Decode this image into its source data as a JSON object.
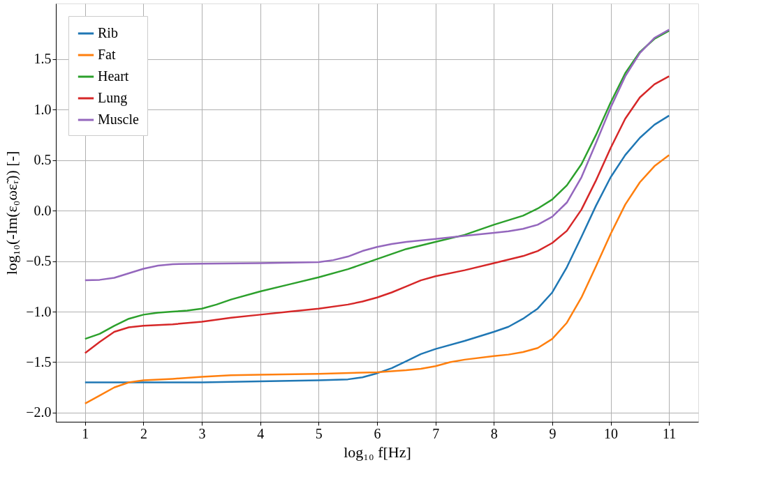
{
  "chart_data": {
    "type": "line",
    "xlabel": "log₁₀ f[Hz]",
    "ylabel": "log₁₀(-Im(ε₀ωε̃ᵣ)) [-]",
    "xlim": [
      0.5,
      11.5
    ],
    "xticks": [
      1,
      2,
      3,
      4,
      5,
      6,
      7,
      8,
      9,
      10,
      11
    ],
    "ylim": [
      -2.09,
      2.05
    ],
    "yticks": [
      {
        "value": -2,
        "label": "−2.0"
      },
      {
        "value": -1.5,
        "label": "−1.5"
      },
      {
        "value": -1,
        "label": "−1.0"
      },
      {
        "value": -0.5,
        "label": "−0.5"
      },
      {
        "value": 0,
        "label": "0.0"
      },
      {
        "value": 0.5,
        "label": "0.5"
      },
      {
        "value": 1,
        "label": "1.0"
      },
      {
        "value": 1.5,
        "label": "1.5"
      }
    ],
    "grid": true,
    "legend": "top left",
    "line_style": "solid",
    "marker": "none",
    "series": [
      {
        "name": "Rib",
        "color": "#1f77b4",
        "x": [
          1,
          2,
          3,
          4,
          5,
          5.5,
          5.75,
          6,
          6.25,
          6.5,
          6.75,
          7,
          7.5,
          8,
          8.25,
          8.5,
          8.75,
          9,
          9.25,
          9.5,
          9.75,
          10,
          10.25,
          10.5,
          10.75,
          11
        ],
        "values": [
          -1.7,
          -1.7,
          -1.7,
          -1.69,
          -1.68,
          -1.67,
          -1.65,
          -1.61,
          -1.56,
          -1.49,
          -1.42,
          -1.37,
          -1.29,
          -1.2,
          -1.15,
          -1.07,
          -0.97,
          -0.81,
          -0.56,
          -0.26,
          0.05,
          0.33,
          0.55,
          0.72,
          0.85,
          0.94
        ]
      },
      {
        "name": "Fat",
        "color": "#ff7f0e",
        "x": [
          1,
          1.25,
          1.5,
          1.75,
          2,
          2.5,
          3,
          3.5,
          4,
          5,
          6,
          6.5,
          6.75,
          7,
          7.25,
          7.5,
          8,
          8.25,
          8.5,
          8.75,
          9,
          9.25,
          9.5,
          9.75,
          10,
          10.25,
          10.5,
          10.75,
          11
        ],
        "values": [
          -1.91,
          -1.83,
          -1.75,
          -1.7,
          -1.68,
          -1.665,
          -1.645,
          -1.63,
          -1.625,
          -1.615,
          -1.6,
          -1.58,
          -1.565,
          -1.54,
          -1.5,
          -1.475,
          -1.44,
          -1.425,
          -1.4,
          -1.36,
          -1.27,
          -1.11,
          -0.86,
          -0.55,
          -0.23,
          0.06,
          0.28,
          0.44,
          0.55
        ]
      },
      {
        "name": "Heart",
        "color": "#2ca02c",
        "x": [
          1,
          1.25,
          1.5,
          1.75,
          2,
          2.25,
          2.5,
          2.75,
          3,
          3.25,
          3.5,
          4,
          4.5,
          5,
          5.5,
          5.75,
          6,
          6.25,
          6.5,
          7,
          7.5,
          8,
          8.5,
          8.75,
          9,
          9.25,
          9.5,
          9.75,
          10,
          10.25,
          10.5,
          10.75,
          11
        ],
        "values": [
          -1.27,
          -1.22,
          -1.14,
          -1.07,
          -1.03,
          -1.01,
          -1.0,
          -0.99,
          -0.97,
          -0.93,
          -0.88,
          -0.8,
          -0.73,
          -0.66,
          -0.58,
          -0.53,
          -0.48,
          -0.43,
          -0.38,
          -0.31,
          -0.24,
          -0.14,
          -0.05,
          0.02,
          0.11,
          0.25,
          0.46,
          0.75,
          1.07,
          1.36,
          1.57,
          1.7,
          1.78
        ]
      },
      {
        "name": "Lung",
        "color": "#d62728",
        "x": [
          1,
          1.25,
          1.5,
          1.75,
          2,
          2.5,
          3,
          3.5,
          4,
          4.5,
          5,
          5.5,
          5.75,
          6,
          6.25,
          6.5,
          6.75,
          7,
          7.5,
          8,
          8.5,
          8.75,
          9,
          9.25,
          9.5,
          9.75,
          10,
          10.25,
          10.5,
          10.75,
          11
        ],
        "values": [
          -1.41,
          -1.3,
          -1.2,
          -1.155,
          -1.14,
          -1.125,
          -1.1,
          -1.06,
          -1.03,
          -1.0,
          -0.97,
          -0.93,
          -0.9,
          -0.86,
          -0.81,
          -0.75,
          -0.69,
          -0.65,
          -0.59,
          -0.52,
          -0.45,
          -0.4,
          -0.32,
          -0.2,
          0.01,
          0.3,
          0.62,
          0.91,
          1.12,
          1.25,
          1.33
        ]
      },
      {
        "name": "Muscle",
        "color": "#9467bd",
        "x": [
          1,
          1.25,
          1.5,
          1.75,
          2,
          2.25,
          2.5,
          3,
          4,
          5,
          5.25,
          5.5,
          5.75,
          6,
          6.25,
          6.5,
          7,
          7.5,
          8,
          8.25,
          8.5,
          8.75,
          9,
          9.25,
          9.5,
          9.75,
          10,
          10.25,
          10.5,
          10.75,
          11
        ],
        "values": [
          -0.69,
          -0.685,
          -0.665,
          -0.62,
          -0.575,
          -0.545,
          -0.53,
          -0.525,
          -0.52,
          -0.51,
          -0.49,
          -0.455,
          -0.4,
          -0.36,
          -0.33,
          -0.31,
          -0.28,
          -0.25,
          -0.22,
          -0.205,
          -0.18,
          -0.14,
          -0.06,
          0.08,
          0.33,
          0.67,
          1.02,
          1.33,
          1.56,
          1.71,
          1.79
        ]
      }
    ]
  }
}
